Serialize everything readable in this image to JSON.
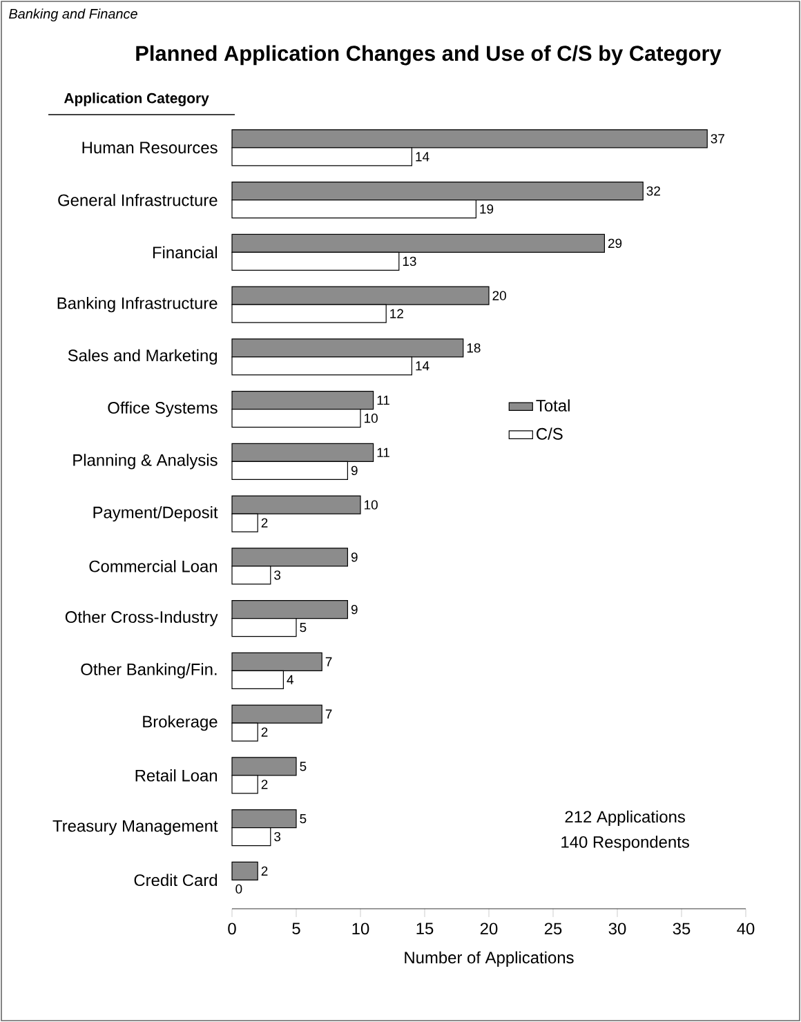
{
  "chart_data": {
    "type": "bar",
    "orientation": "horizontal",
    "title": "Planned Application Changes and Use of C/S by Category",
    "ylabel": "Application Category",
    "xlabel": "Number of Applications",
    "categories": [
      "Human Resources",
      "General Infrastructure",
      "Financial",
      "Banking Infrastructure",
      "Sales and Marketing",
      "Office Systems",
      "Planning & Analysis",
      "Payment/Deposit",
      "Commercial Loan",
      "Other Cross-Industry",
      "Other Banking/Fin.",
      "Brokerage",
      "Retail Loan",
      "Treasury Management",
      "Credit Card"
    ],
    "series": [
      {
        "name": "Total",
        "color": "#8c8c8c",
        "values": [
          37,
          32,
          29,
          20,
          18,
          11,
          11,
          10,
          9,
          9,
          7,
          7,
          5,
          5,
          2
        ]
      },
      {
        "name": "C/S",
        "color": "#ffffff",
        "values": [
          14,
          19,
          13,
          12,
          14,
          10,
          9,
          2,
          3,
          5,
          4,
          2,
          2,
          3,
          0
        ]
      }
    ],
    "xlim": [
      0,
      40
    ],
    "xticks": [
      0,
      5,
      10,
      15,
      20,
      25,
      30,
      35,
      40
    ],
    "data_labels": true,
    "legend": "right",
    "grid": false,
    "annotations": [
      "Banking and Finance",
      "212 Applications",
      "140 Respondents"
    ]
  }
}
